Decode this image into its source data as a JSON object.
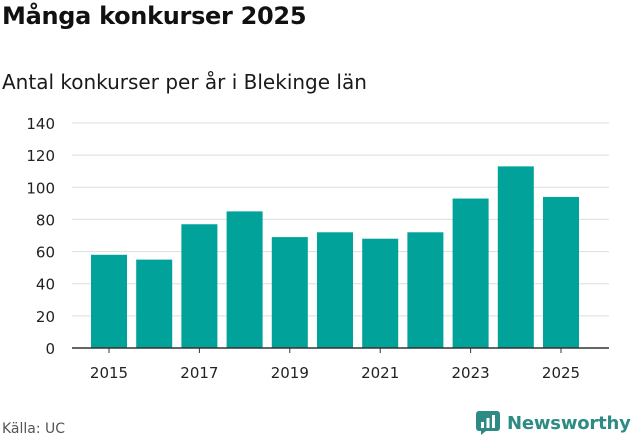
{
  "title": "Många konkurser 2025",
  "subtitle": "Antal konkurser per år i Blekinge län",
  "source": "Källa: UC",
  "brand": {
    "name": "Newsworthy",
    "icon": "newsworthy-logo-icon"
  },
  "colors": {
    "bar": "#00a29a",
    "grid": "#dddddd",
    "axis": "#333333",
    "brand": "#2e8b84"
  },
  "chart_data": {
    "type": "bar",
    "x": [
      2015,
      2016,
      2017,
      2018,
      2019,
      2020,
      2021,
      2022,
      2023,
      2024,
      2025
    ],
    "values": [
      58,
      55,
      77,
      85,
      69,
      72,
      68,
      72,
      93,
      113,
      94
    ],
    "x_tick_labels": [
      "2015",
      "2017",
      "2019",
      "2021",
      "2023",
      "2025"
    ],
    "y_ticks": [
      0,
      20,
      40,
      60,
      80,
      100,
      120,
      140
    ],
    "ylim": [
      0,
      140
    ],
    "xlabel": "",
    "ylabel": "",
    "grid": true,
    "legend": "none"
  }
}
